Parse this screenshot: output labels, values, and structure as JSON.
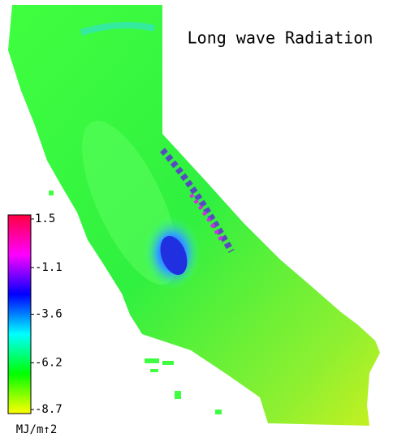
{
  "title": "Long wave Radiation",
  "colorbar": {
    "lim": [
      -8.7,
      1.5
    ],
    "ticks": [
      1.5,
      -1.1,
      -3.6,
      -6.2,
      -8.7
    ],
    "unit": "MJ/m↑2",
    "colors": [
      "#ffff00",
      "#00ff00",
      "#00ffff",
      "#0000ff",
      "#ff00ff",
      "#ff0040"
    ]
  }
}
